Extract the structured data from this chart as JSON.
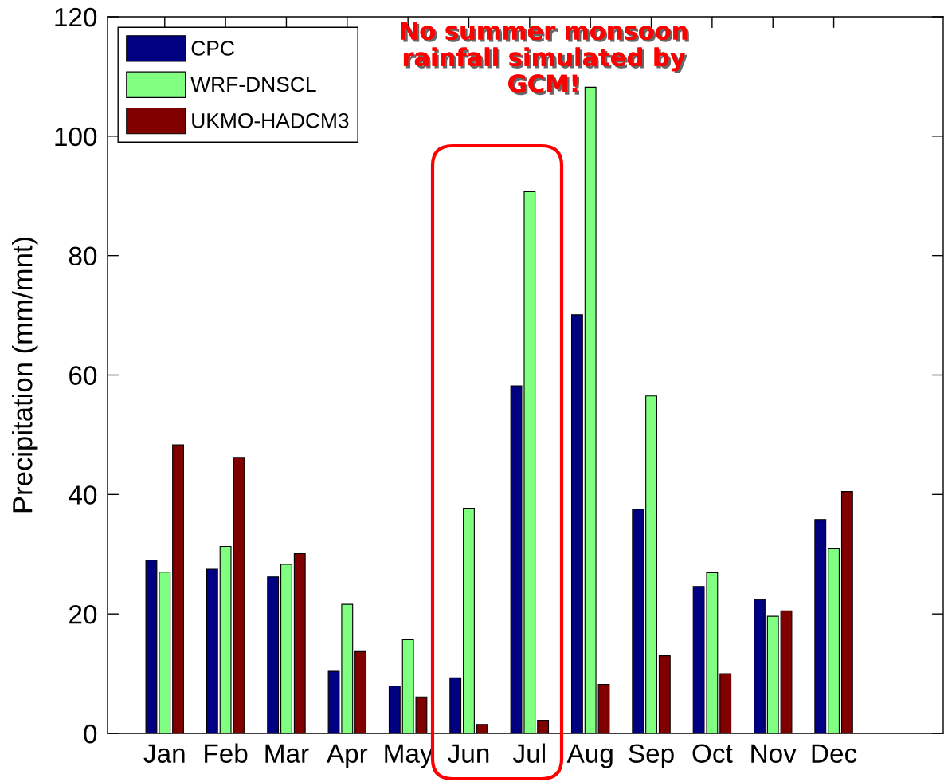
{
  "chart_data": {
    "type": "bar",
    "ylabel": "Precipitation (mm/mnt)",
    "categories": [
      "Jan",
      "Feb",
      "Mar",
      "Apr",
      "May",
      "Jun",
      "Jul",
      "Aug",
      "Sep",
      "Oct",
      "Nov",
      "Dec"
    ],
    "series": [
      {
        "name": "CPC",
        "color": "#000080",
        "values": [
          29.0,
          27.5,
          26.2,
          10.4,
          7.9,
          9.3,
          58.2,
          70.1,
          37.5,
          24.6,
          22.4,
          35.8
        ]
      },
      {
        "name": "WRF-DNSCL",
        "color": "#80ff80",
        "values": [
          27.0,
          31.3,
          28.3,
          21.6,
          15.7,
          37.7,
          90.7,
          108.2,
          56.5,
          26.9,
          19.6,
          30.9
        ]
      },
      {
        "name": "UKMO-HADCM3",
        "color": "#800000",
        "values": [
          48.3,
          46.2,
          30.1,
          13.7,
          6.1,
          1.5,
          2.2,
          8.2,
          13.0,
          10.0,
          20.5,
          40.5
        ]
      }
    ],
    "ylim": [
      0,
      120
    ],
    "yticks": [
      0,
      20,
      40,
      60,
      80,
      100,
      120
    ],
    "legend": "top left",
    "grid": false,
    "annotations": [
      "No summer monsoon\nrainfall simulated by\nGCM!"
    ]
  }
}
